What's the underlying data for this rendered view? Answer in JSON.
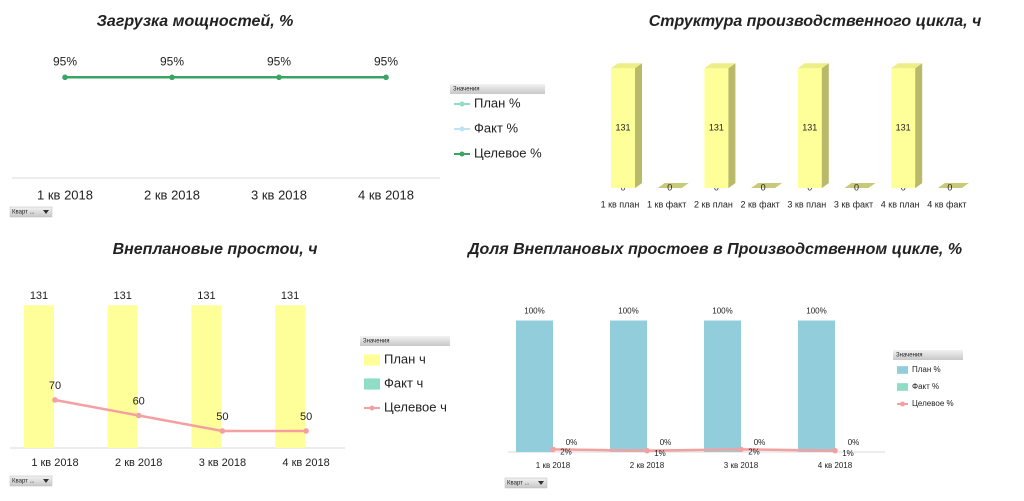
{
  "chart_data": [
    {
      "type": "line",
      "title": "Загрузка мощностей, %",
      "categories": [
        "1 кв 2018",
        "2 кв 2018",
        "3 кв 2018",
        "4 кв 2018"
      ],
      "legend_title": "Значения",
      "series": [
        {
          "name": "План %",
          "color": "#8fdcc8",
          "values": [
            null,
            null,
            null,
            null
          ]
        },
        {
          "name": "Факт %",
          "color": "#bfe3f5",
          "values": [
            null,
            null,
            null,
            null
          ]
        },
        {
          "name": "Целевое %",
          "color": "#3aa463",
          "type": "line",
          "values": [
            95,
            95,
            95,
            95
          ],
          "value_labels": [
            "95%",
            "95%",
            "95%",
            "95%"
          ]
        }
      ],
      "ylim": [
        0,
        100
      ],
      "filter": "Кварт ..."
    },
    {
      "type": "bar",
      "title": "Структура производственного цикла, ч",
      "categories": [
        "1 кв план",
        "1 кв факт",
        "2 кв план",
        "2 кв факт",
        "3 кв план",
        "3 кв факт",
        "4 кв план",
        "4 кв факт"
      ],
      "stacked": true,
      "series": [
        {
          "color": "#ffff99",
          "values": [
            0,
            null,
            0,
            null,
            0,
            null,
            0,
            null
          ]
        },
        {
          "color": "#ffff99",
          "values": [
            131,
            0,
            131,
            0,
            131,
            0,
            131,
            0
          ]
        }
      ],
      "ylim": [
        0,
        140
      ]
    },
    {
      "type": "bar",
      "title": "Внеплановые простои, ч",
      "categories": [
        "1 кв 2018",
        "2 кв 2018",
        "3 кв 2018",
        "4 кв 2018"
      ],
      "legend_title": "Значения",
      "series": [
        {
          "name": "План ч",
          "color": "#ffff99",
          "values": [
            131,
            131,
            131,
            131
          ]
        },
        {
          "name": "Факт ч",
          "color": "#8fdcc8",
          "values": [
            null,
            null,
            null,
            null
          ]
        },
        {
          "name": "Целевое ч",
          "color": "#f4a0a0",
          "type": "line",
          "axis": "y2",
          "values": [
            70,
            60,
            50,
            50
          ]
        }
      ],
      "ylim": [
        0,
        145
      ],
      "y2lim": [
        39,
        141
      ],
      "filter": "Кварт ..."
    },
    {
      "type": "bar",
      "title": "Доля Внеплановых простоев в Производственном цикле, %",
      "categories": [
        "1 кв 2018",
        "2 кв 2018",
        "3 кв 2018",
        "4 кв 2018"
      ],
      "legend_title": "Значения",
      "series": [
        {
          "name": "План %",
          "color": "#92cddc",
          "values": [
            100,
            100,
            100,
            100
          ],
          "value_labels": [
            "100%",
            "100%",
            "100%",
            "100%"
          ]
        },
        {
          "name": "Факт %",
          "color": "#8fdcc8",
          "values": [
            0,
            0,
            0,
            0
          ],
          "value_labels": [
            "0%",
            "0%",
            "0%",
            "0%"
          ]
        },
        {
          "name": "Целевое %",
          "color": "#f4a0a0",
          "type": "line",
          "values": [
            2,
            1,
            2,
            1
          ],
          "value_labels": [
            "2%",
            "1%",
            "2%",
            "1%"
          ]
        }
      ],
      "ylim": [
        0,
        108
      ],
      "filter": "Кварт ..."
    }
  ]
}
